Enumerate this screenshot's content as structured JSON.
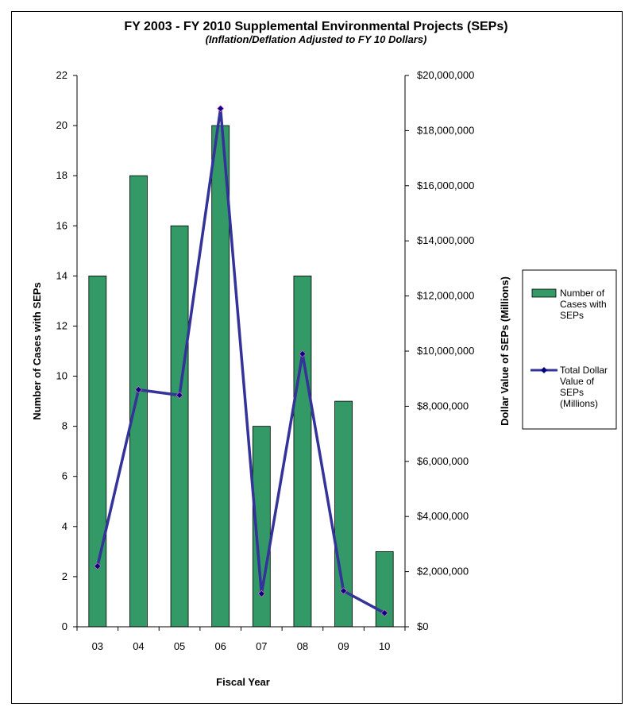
{
  "chart_data": {
    "type": "bar",
    "title": "FY 2003 - FY 2010 Supplemental Environmental Projects (SEPs)",
    "subtitle": "(Inflation/Deflation Adjusted to FY 10 Dollars)",
    "xlabel": "Fiscal Year",
    "ylabel": "Number of Cases with SEPs",
    "y2label": "Dollar Value of SEPs (Millions)",
    "categories": [
      "03",
      "04",
      "05",
      "06",
      "07",
      "08",
      "09",
      "10"
    ],
    "ylim": [
      0,
      22
    ],
    "y2lim": [
      0,
      20000000
    ],
    "yticks": [
      "0",
      "2",
      "4",
      "6",
      "8",
      "10",
      "12",
      "14",
      "16",
      "18",
      "20",
      "22"
    ],
    "y2ticks": [
      "$0",
      "$2,000,000",
      "$4,000,000",
      "$6,000,000",
      "$8,000,000",
      "$10,000,000",
      "$12,000,000",
      "$14,000,000",
      "$16,000,000",
      "$18,000,000",
      "$20,000,000"
    ],
    "grid": false,
    "legend_position": "right",
    "series": [
      {
        "name": "Number of Cases with SEPs",
        "type": "bar",
        "axis": "left",
        "color": "#339966",
        "values": [
          14,
          18,
          16,
          20,
          8,
          14,
          9,
          3
        ]
      },
      {
        "name": "Total Dollar Value of SEPs (Millions)",
        "type": "line",
        "axis": "right",
        "color": "#333399",
        "marker_color": "#000080",
        "values": [
          2200000,
          8600000,
          8400000,
          18800000,
          1200000,
          9900000,
          1300000,
          500000
        ]
      }
    ],
    "legend_lines": [
      [
        "Number of",
        "Cases with",
        "SEPs"
      ],
      [
        "Total Dollar",
        "Value of",
        "SEPs",
        "(Millions)"
      ]
    ]
  }
}
